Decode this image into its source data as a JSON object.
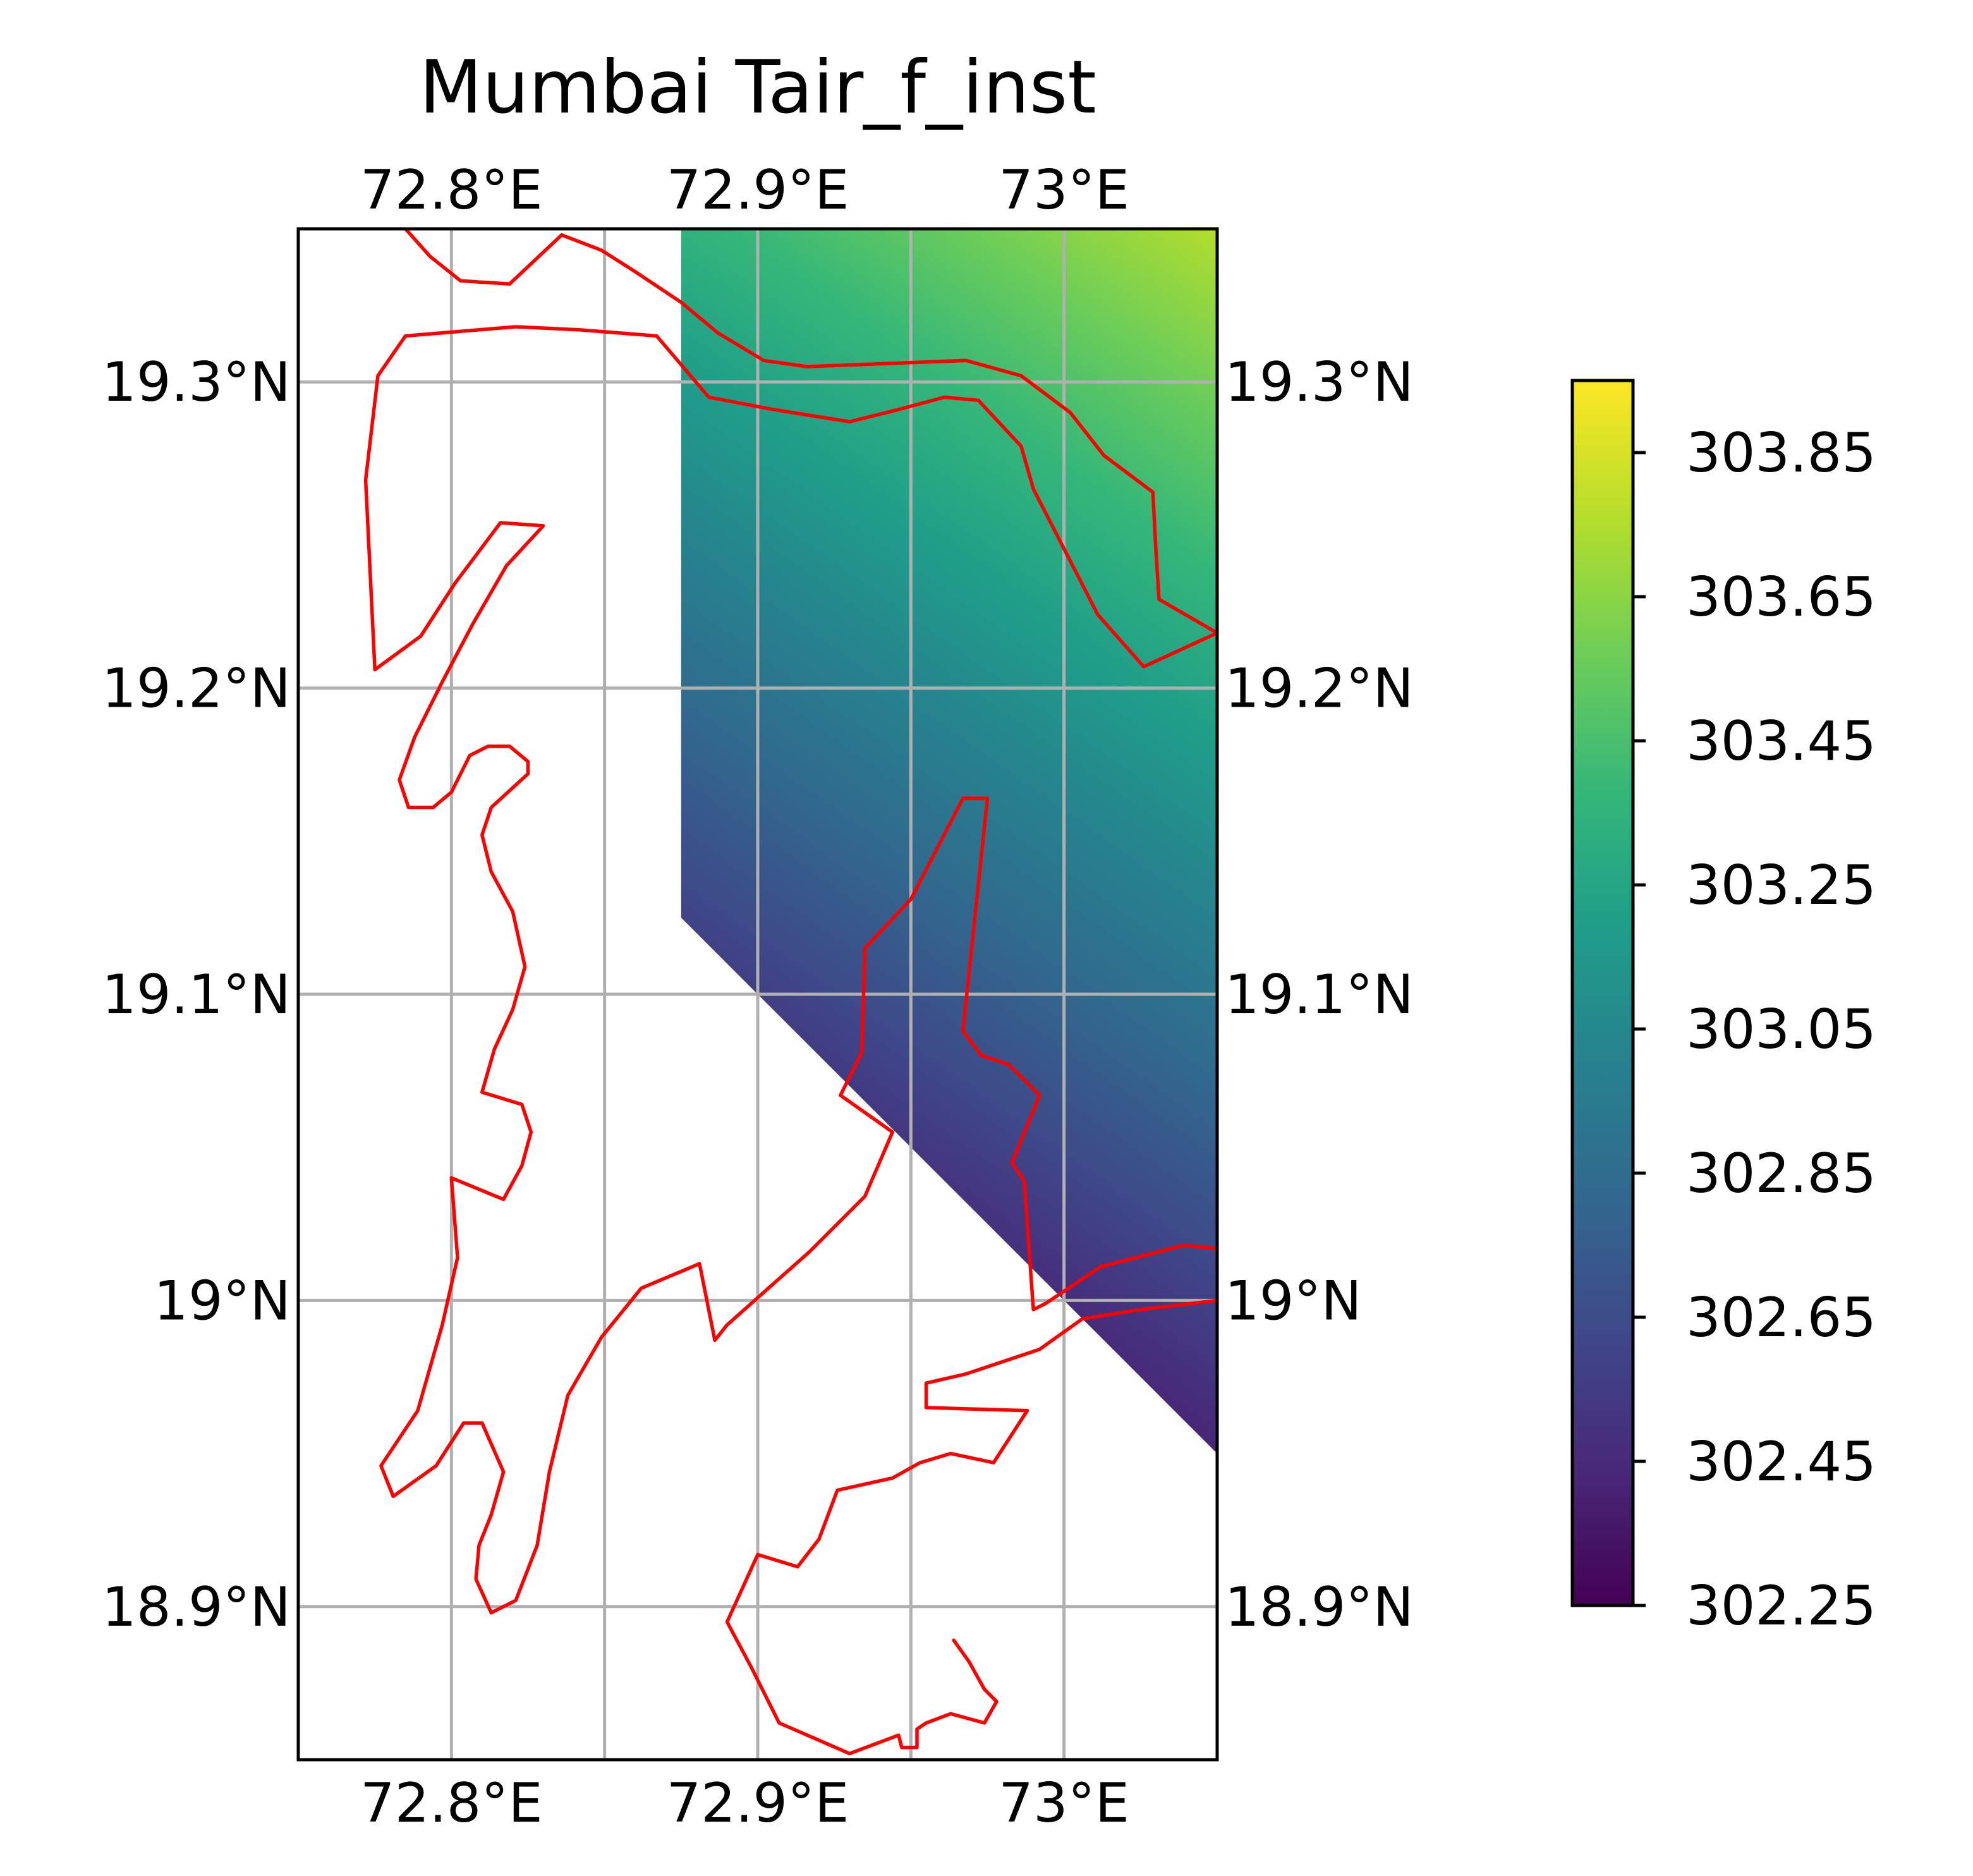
{
  "chart_data": {
    "type": "heatmap",
    "title": "Mumbai Tair_f_inst",
    "variable": "Tair_f_inst",
    "extent": {
      "lon": [
        72.75,
        73.05
      ],
      "lat": [
        18.85,
        19.35
      ]
    },
    "x_ticks": [
      {
        "value": 72.8,
        "label": "72.8°E"
      },
      {
        "value": 72.85,
        "label": ""
      },
      {
        "value": 72.9,
        "label": "72.9°E"
      },
      {
        "value": 72.95,
        "label": ""
      },
      {
        "value": 73.0,
        "label": "73°E"
      }
    ],
    "y_ticks": [
      {
        "value": 18.9,
        "label": "18.9°N"
      },
      {
        "value": 19.0,
        "label": "19°N"
      },
      {
        "value": 19.1,
        "label": "19.1°N"
      },
      {
        "value": 19.2,
        "label": "19.2°N"
      },
      {
        "value": 19.3,
        "label": "19.3°N"
      }
    ],
    "grid": true,
    "colormap": "viridis",
    "colorbar": {
      "range": [
        302.25,
        303.95
      ],
      "ticks": [
        302.25,
        302.45,
        302.65,
        302.85,
        303.05,
        303.25,
        303.45,
        303.65,
        303.85
      ],
      "tick_labels": [
        "302.25",
        "302.45",
        "302.65",
        "302.85",
        "303.05",
        "303.25",
        "303.45",
        "303.65",
        "303.85"
      ],
      "placement": "right"
    },
    "data_region": [
      [
        72.875,
        19.35
      ],
      [
        73.05,
        19.35
      ],
      [
        73.05,
        18.95
      ],
      [
        72.875,
        19.125
      ]
    ],
    "field_gradient": {
      "origin": [
        72.85,
        19.04
      ],
      "low": 302.25,
      "high": 303.95,
      "far": [
        73.09,
        19.38
      ]
    },
    "coastline_color": "#ff0000",
    "coastlines": [
      [
        [
          72.785,
          19.35
        ],
        [
          72.793,
          19.341
        ],
        [
          72.803,
          19.333
        ],
        [
          72.819,
          19.332
        ],
        [
          72.836,
          19.348
        ],
        [
          72.849,
          19.343
        ],
        [
          72.86,
          19.336
        ],
        [
          72.875,
          19.326
        ],
        [
          72.887,
          19.316
        ],
        [
          72.902,
          19.307
        ],
        [
          72.916,
          19.305
        ],
        [
          72.968,
          19.307
        ],
        [
          72.986,
          19.302
        ],
        [
          73.002,
          19.29
        ],
        [
          73.013,
          19.276
        ],
        [
          73.029,
          19.264
        ],
        [
          73.03,
          19.245
        ],
        [
          73.031,
          19.229
        ],
        [
          73.05,
          19.218
        ],
        [
          73.026,
          19.207
        ],
        [
          73.011,
          19.224
        ],
        [
          72.99,
          19.265
        ],
        [
          72.986,
          19.279
        ],
        [
          72.972,
          19.294
        ],
        [
          72.961,
          19.295
        ],
        [
          72.946,
          19.291
        ],
        [
          72.93,
          19.287
        ],
        [
          72.905,
          19.291
        ],
        [
          72.884,
          19.295
        ],
        [
          72.867,
          19.315
        ],
        [
          72.842,
          19.317
        ],
        [
          72.821,
          19.318
        ],
        [
          72.785,
          19.315
        ],
        [
          72.776,
          19.302
        ],
        [
          72.772,
          19.268
        ],
        [
          72.775,
          19.206
        ],
        [
          72.79,
          19.217
        ],
        [
          72.801,
          19.234
        ],
        [
          72.816,
          19.254
        ],
        [
          72.83,
          19.253
        ],
        [
          72.818,
          19.24
        ],
        [
          72.807,
          19.221
        ],
        [
          72.797,
          19.202
        ],
        [
          72.788,
          19.184
        ],
        [
          72.783,
          19.17
        ],
        [
          72.786,
          19.161
        ],
        [
          72.794,
          19.161
        ],
        [
          72.8,
          19.166
        ],
        [
          72.806,
          19.178
        ],
        [
          72.812,
          19.181
        ],
        [
          72.819,
          19.181
        ],
        [
          72.825,
          19.176
        ],
        [
          72.825,
          19.172
        ],
        [
          72.813,
          19.161
        ],
        [
          72.81,
          19.152
        ],
        [
          72.813,
          19.14
        ],
        [
          72.82,
          19.127
        ],
        [
          72.824,
          19.109
        ],
        [
          72.82,
          19.095
        ],
        [
          72.814,
          19.082
        ],
        [
          72.81,
          19.068
        ],
        [
          72.823,
          19.064
        ],
        [
          72.826,
          19.055
        ],
        [
          72.823,
          19.044
        ],
        [
          72.817,
          19.033
        ],
        [
          72.8,
          19.04
        ],
        [
          72.802,
          19.014
        ],
        [
          72.797,
          18.992
        ],
        [
          72.789,
          18.964
        ],
        [
          72.777,
          18.946
        ],
        [
          72.781,
          18.936
        ],
        [
          72.795,
          18.946
        ],
        [
          72.804,
          18.96
        ],
        [
          72.81,
          18.96
        ],
        [
          72.817,
          18.944
        ],
        [
          72.813,
          18.93
        ],
        [
          72.809,
          18.92
        ],
        [
          72.808,
          18.909
        ],
        [
          72.813,
          18.898
        ],
        [
          72.821,
          18.902
        ],
        [
          72.828,
          18.92
        ],
        [
          72.832,
          18.944
        ],
        [
          72.838,
          18.969
        ],
        [
          72.849,
          18.988
        ],
        [
          72.862,
          19.004
        ],
        [
          72.881,
          19.012
        ],
        [
          72.886,
          18.987
        ],
        [
          72.89,
          18.992
        ],
        [
          72.917,
          19.016
        ],
        [
          72.935,
          19.034
        ],
        [
          72.944,
          19.055
        ],
        [
          72.927,
          19.067
        ],
        [
          72.934,
          19.081
        ],
        [
          72.935,
          19.115
        ],
        [
          72.95,
          19.131
        ],
        [
          72.967,
          19.164
        ],
        [
          72.975,
          19.164
        ],
        [
          72.967,
          19.088
        ],
        [
          72.973,
          19.08
        ],
        [
          72.982,
          19.077
        ],
        [
          72.992,
          19.067
        ],
        [
          72.983,
          19.045
        ],
        [
          72.987,
          19.039
        ],
        [
          72.99,
          18.997
        ],
        [
          72.994,
          18.999
        ],
        [
          73.012,
          19.011
        ],
        [
          73.039,
          19.018
        ],
        [
          73.05,
          19.017
        ]
      ],
      [
        [
          73.05,
          19.0
        ],
        [
          73.025,
          18.997
        ],
        [
          73.006,
          18.994
        ],
        [
          72.992,
          18.984
        ],
        [
          72.968,
          18.976
        ],
        [
          72.955,
          18.973
        ],
        [
          72.955,
          18.965
        ],
        [
          72.988,
          18.964
        ],
        [
          72.977,
          18.947
        ],
        [
          72.963,
          18.95
        ],
        [
          72.953,
          18.947
        ],
        [
          72.944,
          18.942
        ],
        [
          72.926,
          18.938
        ],
        [
          72.92,
          18.922
        ],
        [
          72.913,
          18.913
        ],
        [
          72.9,
          18.917
        ],
        [
          72.89,
          18.895
        ],
        [
          72.898,
          18.88
        ],
        [
          72.907,
          18.862
        ],
        [
          72.93,
          18.852
        ],
        [
          72.946,
          18.858
        ],
        [
          72.947,
          18.854
        ],
        [
          72.952,
          18.854
        ],
        [
          72.952,
          18.86
        ],
        [
          72.955,
          18.862
        ],
        [
          72.963,
          18.865
        ],
        [
          72.974,
          18.862
        ],
        [
          72.978,
          18.869
        ],
        [
          72.974,
          18.873
        ],
        [
          72.969,
          18.882
        ],
        [
          72.964,
          18.889
        ]
      ]
    ]
  }
}
